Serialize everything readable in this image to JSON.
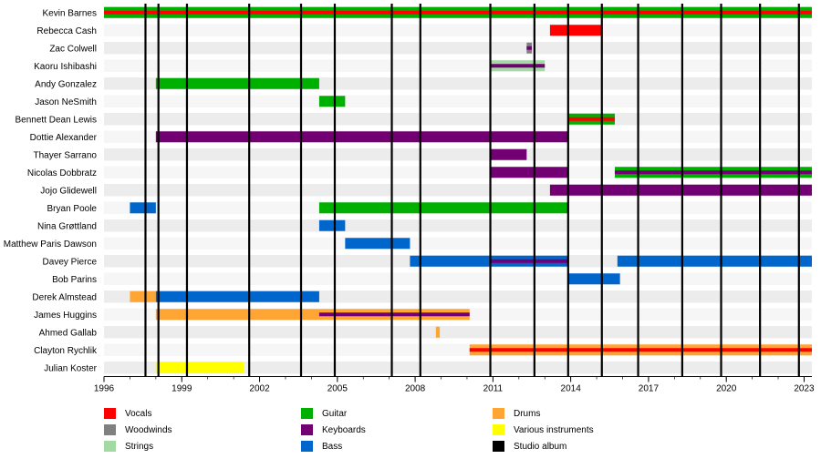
{
  "chart_data": {
    "type": "timeline",
    "title": "",
    "xlim": [
      1996,
      2023.3
    ],
    "x_ticks": [
      1996,
      1999,
      2002,
      2005,
      2008,
      2011,
      2014,
      2017,
      2020,
      2023
    ],
    "roles": {
      "vocals": {
        "label": "Vocals",
        "color": "#ff0000"
      },
      "woodwinds": {
        "label": "Woodwinds",
        "color": "#808080"
      },
      "strings": {
        "label": "Strings",
        "color": "#a3d9a3"
      },
      "guitar": {
        "label": "Guitar",
        "color": "#00b000"
      },
      "keyboards": {
        "label": "Keyboards",
        "color": "#730073"
      },
      "bass": {
        "label": "Bass",
        "color": "#0066cc"
      },
      "drums": {
        "label": "Drums",
        "color": "#ffa533"
      },
      "various": {
        "label": "Various instruments",
        "color": "#ffff00"
      },
      "album": {
        "label": "Studio album",
        "color": "#000000"
      }
    },
    "legend_order": [
      [
        "vocals",
        "woodwinds",
        "strings"
      ],
      [
        "guitar",
        "keyboards",
        "bass"
      ],
      [
        "drums",
        "various",
        "album"
      ]
    ],
    "albums": [
      1997.6,
      1998.1,
      1999.2,
      2001.6,
      2003.6,
      2004.9,
      2007.1,
      2008.2,
      2010.9,
      2012.6,
      2013.9,
      2015.2,
      2016.6,
      2018.3,
      2019.8,
      2021.3,
      2022.8
    ],
    "members": [
      {
        "name": "Kevin Barnes",
        "bars": [
          {
            "start": 1996,
            "end": 2023.3,
            "role": "guitar",
            "stripe": "vocals"
          }
        ]
      },
      {
        "name": "Rebecca Cash",
        "bars": [
          {
            "start": 2013.2,
            "end": 2015.2,
            "role": "vocals"
          }
        ]
      },
      {
        "name": "Zac Colwell",
        "bars": [
          {
            "start": 2012.3,
            "end": 2012.5,
            "role": "woodwinds",
            "stripe": "keyboards"
          }
        ]
      },
      {
        "name": "Kaoru Ishibashi",
        "bars": [
          {
            "start": 2010.9,
            "end": 2013.0,
            "role": "strings",
            "stripe": "keyboards"
          }
        ]
      },
      {
        "name": "Andy Gonzalez",
        "bars": [
          {
            "start": 1998.0,
            "end": 2004.3,
            "role": "guitar"
          }
        ]
      },
      {
        "name": "Jason NeSmith",
        "bars": [
          {
            "start": 2004.3,
            "end": 2005.3,
            "role": "guitar"
          }
        ]
      },
      {
        "name": "Bennett Dean Lewis",
        "bars": [
          {
            "start": 2013.9,
            "end": 2015.7,
            "role": "guitar",
            "stripe": "vocals"
          }
        ]
      },
      {
        "name": "Dottie Alexander",
        "bars": [
          {
            "start": 1998.0,
            "end": 2013.9,
            "role": "keyboards"
          }
        ]
      },
      {
        "name": "Thayer Sarrano",
        "bars": [
          {
            "start": 2010.9,
            "end": 2012.3,
            "role": "keyboards"
          }
        ]
      },
      {
        "name": "Nicolas Dobbratz",
        "bars": [
          {
            "start": 2010.9,
            "end": 2013.9,
            "role": "keyboards"
          },
          {
            "start": 2015.7,
            "end": 2023.3,
            "role": "guitar",
            "stripe": "keyboards"
          }
        ]
      },
      {
        "name": "Jojo Glidewell",
        "bars": [
          {
            "start": 2013.2,
            "end": 2023.3,
            "role": "keyboards"
          }
        ]
      },
      {
        "name": "Bryan Poole",
        "bars": [
          {
            "start": 1997.0,
            "end": 1998.0,
            "role": "bass"
          },
          {
            "start": 2004.3,
            "end": 2013.9,
            "role": "guitar"
          }
        ]
      },
      {
        "name": "Nina Grøttland",
        "bars": [
          {
            "start": 2004.3,
            "end": 2005.3,
            "role": "bass"
          }
        ]
      },
      {
        "name": "Matthew Paris Dawson",
        "bars": [
          {
            "start": 2005.3,
            "end": 2007.8,
            "role": "bass"
          }
        ]
      },
      {
        "name": "Davey Pierce",
        "bars": [
          {
            "start": 2007.8,
            "end": 2013.9,
            "role": "bass",
            "stripe": "keyboards",
            "stripe_start": 2010.9
          },
          {
            "start": 2015.8,
            "end": 2023.3,
            "role": "bass"
          }
        ]
      },
      {
        "name": "Bob Parins",
        "bars": [
          {
            "start": 2013.9,
            "end": 2015.9,
            "role": "bass"
          }
        ]
      },
      {
        "name": "Derek Almstead",
        "bars": [
          {
            "start": 1997.0,
            "end": 1998.0,
            "role": "drums"
          },
          {
            "start": 1998.0,
            "end": 2004.3,
            "role": "bass"
          }
        ]
      },
      {
        "name": "James Huggins",
        "bars": [
          {
            "start": 1998.0,
            "end": 2010.1,
            "role": "drums",
            "stripe": "keyboards",
            "stripe_start": 2004.3
          }
        ]
      },
      {
        "name": "Ahmed Gallab",
        "bars": [
          {
            "start": 2008.8,
            "end": 2008.95,
            "role": "drums"
          }
        ]
      },
      {
        "name": "Clayton Rychlik",
        "bars": [
          {
            "start": 2010.1,
            "end": 2023.3,
            "role": "drums",
            "stripe": "vocals"
          }
        ]
      },
      {
        "name": "Julian Koster",
        "bars": [
          {
            "start": 1998.0,
            "end": 2001.4,
            "role": "various"
          }
        ]
      }
    ]
  }
}
